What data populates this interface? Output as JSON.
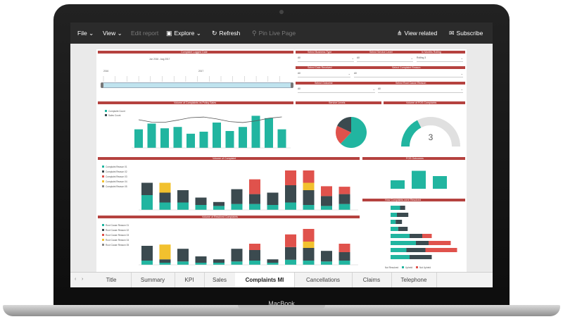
{
  "device": {
    "brand": "MacBook"
  },
  "menubar": {
    "file": "File",
    "view": "View",
    "edit_report": "Edit report",
    "explore": "Explore",
    "refresh": "Refresh",
    "pin_live_page": "Pin Live Page",
    "view_related": "View related",
    "subscribe": "Subscribe"
  },
  "tabs": [
    "Title",
    "Summary",
    "KPI",
    "Sales",
    "Complaints MI",
    "Cancellations",
    "Claims",
    "Telephone"
  ],
  "active_tab": "Complaints MI",
  "report": {
    "date_panel": {
      "title": "Complaint Logged Date",
      "range": "Jun 2016 - Aug 2017",
      "year1": "2016",
      "year2": "2017"
    },
    "filters": [
      {
        "label": "Select Business Type",
        "value": "All"
      },
      {
        "label": "Select Service Level",
        "value": "All"
      },
      {
        "label": "In Months Rolling",
        "value": "Rolling 3"
      },
      {
        "label": "Select Date Received",
        "value": "All"
      },
      {
        "label": "Select Complaint Reason",
        "value": "All"
      },
      {
        "label": "Select Outcome",
        "value": "All"
      },
      {
        "label": "Select Root Cause Reason",
        "value": "All"
      }
    ],
    "panels": {
      "policy_sales": "Volume of Complaints vs Policy Sales",
      "service_levels": "Service Levels",
      "fos": "Volume of FOS Complaints",
      "complaint_volume": "Volume of Complaint",
      "fos_outcomes": "FOS Outcomes",
      "root_cause": "Volume of Resolved Complaints",
      "reasons": "How Complaints were Resolved"
    },
    "gauge": {
      "value": "3",
      "fraction": 0.35
    },
    "legends": {
      "policy_sales": [
        "Complaint Count",
        "Sales Count"
      ],
      "complaint_volume": [
        "Complaint Reason 01",
        "Complaint Reason 02",
        "Complaint Reason 03",
        "Complaint Reason 04",
        "Complaint Reason 05"
      ],
      "root_cause": [
        "Root Cause Reason 01",
        "Root Cause Reason 02",
        "Root Cause Reason 03",
        "Root Cause Reason 04",
        "Root Cause Reason 05"
      ],
      "reasons": [
        "Not Resolved",
        "Upheld",
        "Not Upheld"
      ]
    },
    "colors": {
      "teal": "#21b5a0",
      "dark": "#3b4a4f",
      "red": "#e0524c",
      "yellow": "#f2c12e",
      "header": "#b5423f"
    },
    "bars_policy_sales": [
      0.55,
      0.72,
      0.58,
      0.62,
      0.42,
      0.48,
      0.75,
      0.5,
      0.62,
      0.95,
      0.88,
      0.55
    ],
    "stack_complaints": [
      [
        0.3,
        0.25,
        0,
        0
      ],
      [
        0.15,
        0.2,
        0.2,
        0
      ],
      [
        0.15,
        0.25,
        0,
        0
      ],
      [
        0.1,
        0.15,
        0,
        0
      ],
      [
        0.08,
        0.08,
        0,
        0
      ],
      [
        0.12,
        0.3,
        0,
        0
      ],
      [
        0.12,
        0.2,
        0,
        0.3
      ],
      [
        0.1,
        0.25,
        0,
        0
      ],
      [
        0.15,
        0.35,
        0,
        0.3
      ],
      [
        0.1,
        0.3,
        0.15,
        0.25
      ],
      [
        0.08,
        0.2,
        0,
        0.2
      ],
      [
        0.12,
        0.2,
        0,
        0.15
      ]
    ],
    "stack_root_cause": [
      [
        0.1,
        0.35,
        0,
        0
      ],
      [
        0.05,
        0.08,
        0.35,
        0
      ],
      [
        0.08,
        0.3,
        0,
        0
      ],
      [
        0.05,
        0.15,
        0,
        0
      ],
      [
        0.05,
        0.08,
        0,
        0
      ],
      [
        0.08,
        0.3,
        0,
        0
      ],
      [
        0.1,
        0.25,
        0,
        0.15
      ],
      [
        0.05,
        0.08,
        0,
        0
      ],
      [
        0.12,
        0.3,
        0,
        0.3
      ],
      [
        0.1,
        0.3,
        0.15,
        0.3
      ],
      [
        0.08,
        0.25,
        0,
        0
      ],
      [
        0.1,
        0.2,
        0,
        0.2
      ]
    ],
    "hbars": [
      [
        0.15,
        0.08,
        0
      ],
      [
        0.1,
        0.18,
        0
      ],
      [
        0.08,
        0.1,
        0
      ],
      [
        0.12,
        0.15,
        0
      ],
      [
        0.3,
        0.2,
        0.15
      ],
      [
        0.4,
        0.2,
        0.35
      ],
      [
        0.25,
        0.3,
        0.5
      ],
      [
        0.3,
        0.35,
        0
      ]
    ],
    "fos_bars": [
      0.4,
      0.85,
      0.6
    ],
    "pie": [
      0.62,
      0.2,
      0.18
    ]
  }
}
